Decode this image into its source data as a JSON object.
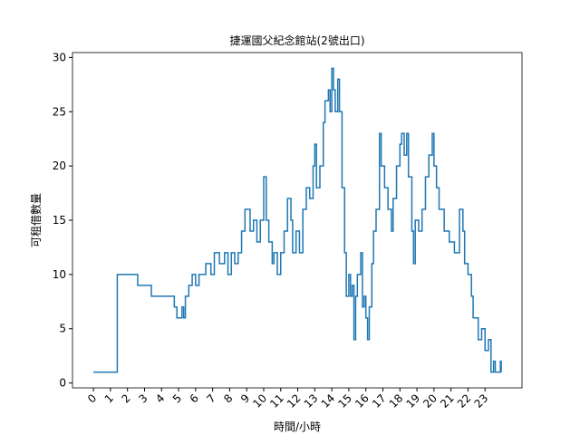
{
  "chart_data": {
    "type": "step",
    "title": "捷運國父紀念館站(2號出口)",
    "x_label": "時間/小時",
    "y_label": "可租借數量",
    "color": "#1f77b4",
    "x": [
      0,
      1.4,
      2.6,
      3.4,
      4.75,
      4.9,
      5.2,
      5.3,
      5.4,
      5.6,
      5.8,
      6.0,
      6.2,
      6.6,
      6.9,
      7.1,
      7.4,
      7.7,
      7.9,
      8.1,
      8.3,
      8.5,
      8.7,
      8.9,
      9.2,
      9.4,
      9.6,
      9.8,
      10.0,
      10.15,
      10.3,
      10.5,
      10.6,
      10.8,
      11.0,
      11.2,
      11.4,
      11.6,
      11.7,
      11.9,
      12.1,
      12.3,
      12.5,
      12.7,
      12.9,
      13.0,
      13.1,
      13.3,
      13.5,
      13.6,
      13.8,
      13.9,
      14.0,
      14.1,
      14.2,
      14.35,
      14.45,
      14.6,
      14.75,
      14.85,
      15.0,
      15.1,
      15.2,
      15.3,
      15.4,
      15.5,
      15.7,
      15.8,
      15.9,
      16.0,
      16.1,
      16.2,
      16.35,
      16.45,
      16.6,
      16.8,
      16.9,
      17.1,
      17.3,
      17.5,
      17.6,
      17.8,
      18.0,
      18.1,
      18.25,
      18.4,
      18.5,
      18.7,
      18.8,
      18.9,
      19.1,
      19.3,
      19.5,
      19.7,
      19.9,
      20.0,
      20.15,
      20.3,
      20.6,
      20.9,
      21.2,
      21.5,
      21.7,
      21.8,
      22.0,
      22.2,
      22.3,
      22.6,
      22.8,
      23.0,
      23.2,
      23.35,
      23.5,
      23.6,
      23.9,
      23.95
    ],
    "values": [
      1,
      10,
      9,
      8,
      7,
      6,
      7,
      6,
      8,
      9,
      10,
      9,
      10,
      11,
      10,
      12,
      11,
      12,
      10,
      12,
      11,
      12,
      14,
      16,
      14,
      15,
      13,
      15,
      19,
      15,
      13,
      11,
      12,
      10,
      12,
      14,
      17,
      15,
      12,
      14,
      12,
      16,
      18,
      17,
      20,
      22,
      18,
      20,
      24,
      26,
      27,
      25,
      29,
      27,
      25,
      28,
      25,
      18,
      12,
      8,
      10,
      8,
      9,
      4,
      8,
      10,
      12,
      7,
      8,
      6,
      4,
      7,
      11,
      14,
      16,
      23,
      20,
      18,
      16,
      14,
      17,
      20,
      22,
      23,
      21,
      23,
      19,
      14,
      11,
      15,
      14,
      16,
      19,
      21,
      23,
      20,
      18,
      16,
      14,
      13,
      12,
      16,
      14,
      11,
      10,
      8,
      6,
      4,
      5,
      3,
      4,
      1,
      2,
      1,
      2,
      1
    ],
    "xlim": [
      -1.23,
      25.17
    ],
    "ylim": [
      -0.45,
      30.45
    ],
    "xticks": [
      0,
      1,
      2,
      3,
      4,
      5,
      6,
      7,
      8,
      9,
      10,
      11,
      12,
      13,
      14,
      15,
      16,
      17,
      18,
      19,
      20,
      21,
      22,
      23
    ],
    "yticks": [
      0,
      5,
      10,
      15,
      20,
      25,
      30
    ]
  }
}
